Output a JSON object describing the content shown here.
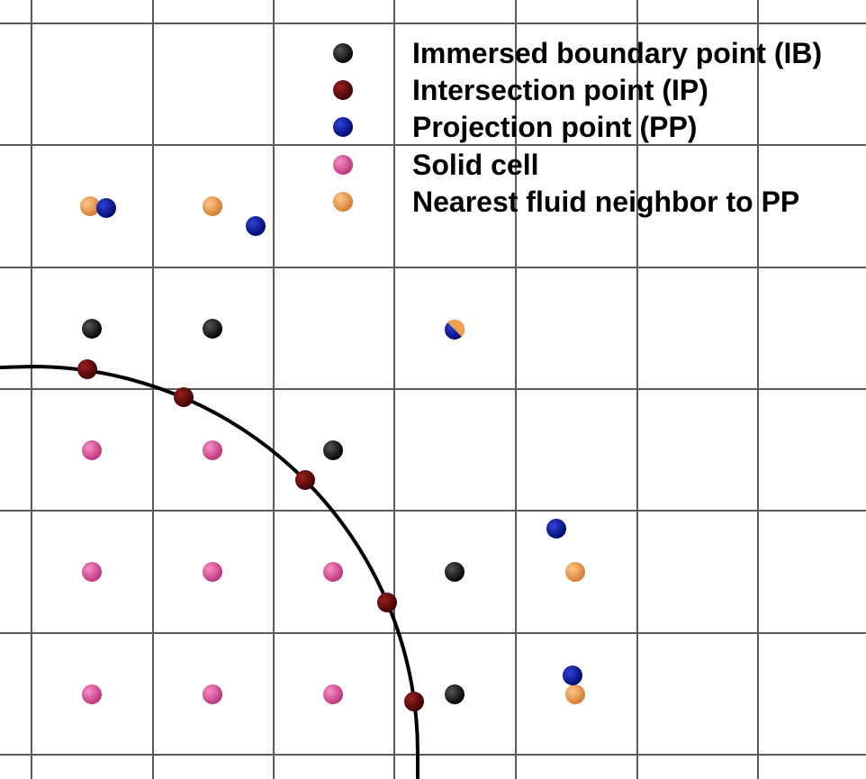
{
  "legend": {
    "items": [
      {
        "key": "ib",
        "label": "Immersed boundary point (IB)",
        "color": "#000000"
      },
      {
        "key": "ip",
        "label": "Intersection point (IP)",
        "color": "#5a0000"
      },
      {
        "key": "pp",
        "label": "Projection point (PP)",
        "color": "#000e96"
      },
      {
        "key": "solid",
        "label": "Solid cell",
        "color": "#e05aa6"
      },
      {
        "key": "nf",
        "label": "Nearest fluid neighbor to PP",
        "color": "#f0a050"
      }
    ]
  },
  "colors": {
    "grid": "#5a5a5a",
    "boundary": "#000000",
    "background": "#ffffff"
  }
}
